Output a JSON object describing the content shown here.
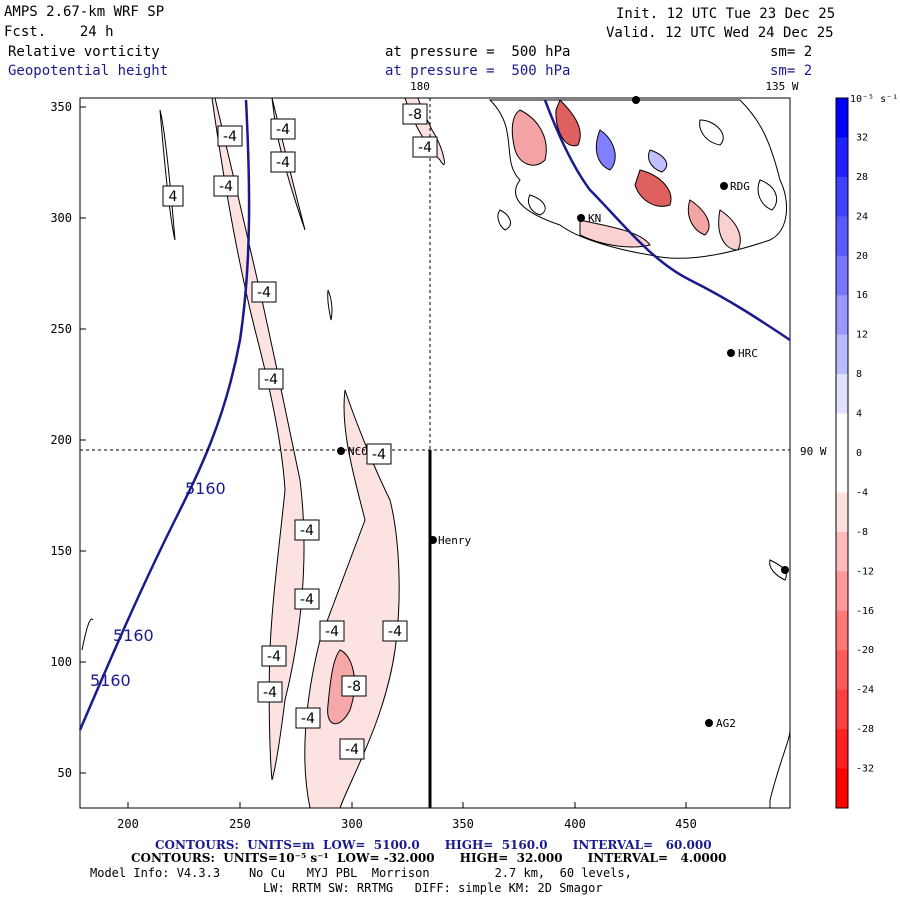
{
  "header": {
    "title": "AMPS 2.67-km WRF SP",
    "fcst": "Fcst.    24 h",
    "init": "Init. 12 UTC Tue 23 Dec 25",
    "valid": "Valid. 12 UTC Wed 24 Dec 25",
    "var1_name": "Relative vorticity",
    "var1_level": "at pressure =  500 hPa",
    "var1_smooth": "sm= 2",
    "var2_name": "Geopotential height",
    "var2_level": "at pressure =  500 hPa",
    "var2_smooth": "sm= 2"
  },
  "map": {
    "x_ticks": [
      "200",
      "250",
      "300",
      "350",
      "400",
      "450"
    ],
    "y_ticks": [
      "350",
      "300",
      "250",
      "200",
      "150",
      "100",
      "50"
    ],
    "meridian_labels": {
      "lon_180": "180",
      "lon_135w": "135 W",
      "lon_90w": "90 W"
    },
    "stations": [
      {
        "name": "NCO",
        "id": "station-nco"
      },
      {
        "name": "Henry",
        "id": "station-henry"
      },
      {
        "name": "HRC",
        "id": "station-hrc"
      },
      {
        "name": "AG2",
        "id": "station-ag2"
      },
      {
        "name": "RDG",
        "id": "station-rdg"
      },
      {
        "name": "KN",
        "id": "station-kn"
      }
    ],
    "height_contour_labels": [
      "5160",
      "5160",
      "5160"
    ],
    "vorticity_labels": [
      "-4",
      "-4",
      "-4",
      "-4",
      "-4",
      "-4",
      "-4",
      "-4",
      "-4",
      "-4",
      "-4",
      "-4",
      "-4",
      "-4",
      "-8",
      "-8",
      "4"
    ]
  },
  "colorbar": {
    "unit_label": "10⁻⁵ s⁻¹",
    "ticks": [
      "32",
      "28",
      "24",
      "20",
      "16",
      "12",
      "8",
      "4",
      "0",
      "-4",
      "-8",
      "-12",
      "-16",
      "-20",
      "-24",
      "-28",
      "-32"
    ],
    "colors": [
      "#0000ff",
      "#2020ff",
      "#4040ff",
      "#5a5aff",
      "#7878ff",
      "#9898ff",
      "#babaff",
      "#e0e0ff",
      "#ffffff",
      "#ffffff",
      "#ffe0e0",
      "#ffbaba",
      "#ff9898",
      "#ff7878",
      "#ff5a5a",
      "#ff4040",
      "#ff2020",
      "#ff0000"
    ]
  },
  "footer": {
    "contour1": "CONTOURS:  UNITS=m  LOW=  5100.0      HIGH=  5160.0      INTERVAL=   60.000",
    "contour2": "CONTOURS:  UNITS=10⁻⁵ s⁻¹  LOW= -32.000      HIGH=  32.000      INTERVAL=   4.0000",
    "model1": "Model Info: V4.3.3    No Cu   MYJ PBL  Morrison         2.7 km,  60 levels,",
    "model2": "LW: RRTM SW: RRTMG   DIFF: simple KM: 2D Smagor"
  }
}
